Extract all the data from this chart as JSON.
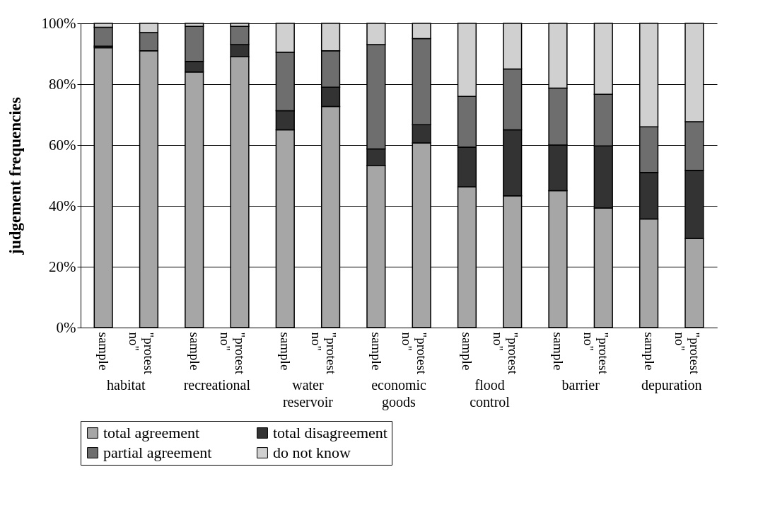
{
  "chart_data": {
    "type": "bar",
    "stacked": true,
    "ylabel": "judgement frequencies",
    "categories": [
      "sample",
      "\"protest no\"",
      "sample",
      "\"protest no\"",
      "sample",
      "\"protest no\"",
      "sample",
      "\"protest no\"",
      "sample",
      "\"protest no\"",
      "sample",
      "\"protest no\"",
      "sample",
      "\"protest no\""
    ],
    "annotations": [
      "habitat",
      "recreational",
      "water reservoir",
      "economic goods",
      "flood control",
      "barrier",
      "depuration"
    ],
    "series": [
      {
        "name": "total agreement",
        "color": "#a6a6a6",
        "values": [
          92,
          91,
          84,
          89,
          65,
          72.7,
          53.3,
          60.7,
          46.3,
          43.3,
          45,
          39.3,
          35.7,
          29.3
        ]
      },
      {
        "name": "total disagreement",
        "color": "#333333",
        "values": [
          0.5,
          0,
          3.5,
          4,
          6.3,
          6.3,
          5.4,
          6,
          13,
          21.7,
          15,
          20.4,
          15.3,
          22.4
        ]
      },
      {
        "name": "partial agreement",
        "color": "#6e6e6e",
        "values": [
          6.2,
          6,
          11.5,
          6,
          19.2,
          12,
          34.3,
          28.3,
          16.7,
          20,
          18.7,
          17,
          15,
          16
        ]
      },
      {
        "name": "do not know",
        "color": "#d0d0d0",
        "values": [
          1.3,
          3,
          1,
          1,
          9.5,
          9,
          7,
          5,
          24,
          15,
          21.3,
          23.3,
          34,
          32.3
        ]
      }
    ],
    "ylim": [
      0,
      100
    ],
    "yticks": [
      {
        "value": 0,
        "label": "0%"
      },
      {
        "value": 20,
        "label": "20%"
      },
      {
        "value": 40,
        "label": "40%"
      },
      {
        "value": 60,
        "label": "60%"
      },
      {
        "value": 80,
        "label": "80%"
      },
      {
        "value": 100,
        "label": "100%"
      }
    ],
    "grid": "y",
    "legend": "bottom"
  }
}
